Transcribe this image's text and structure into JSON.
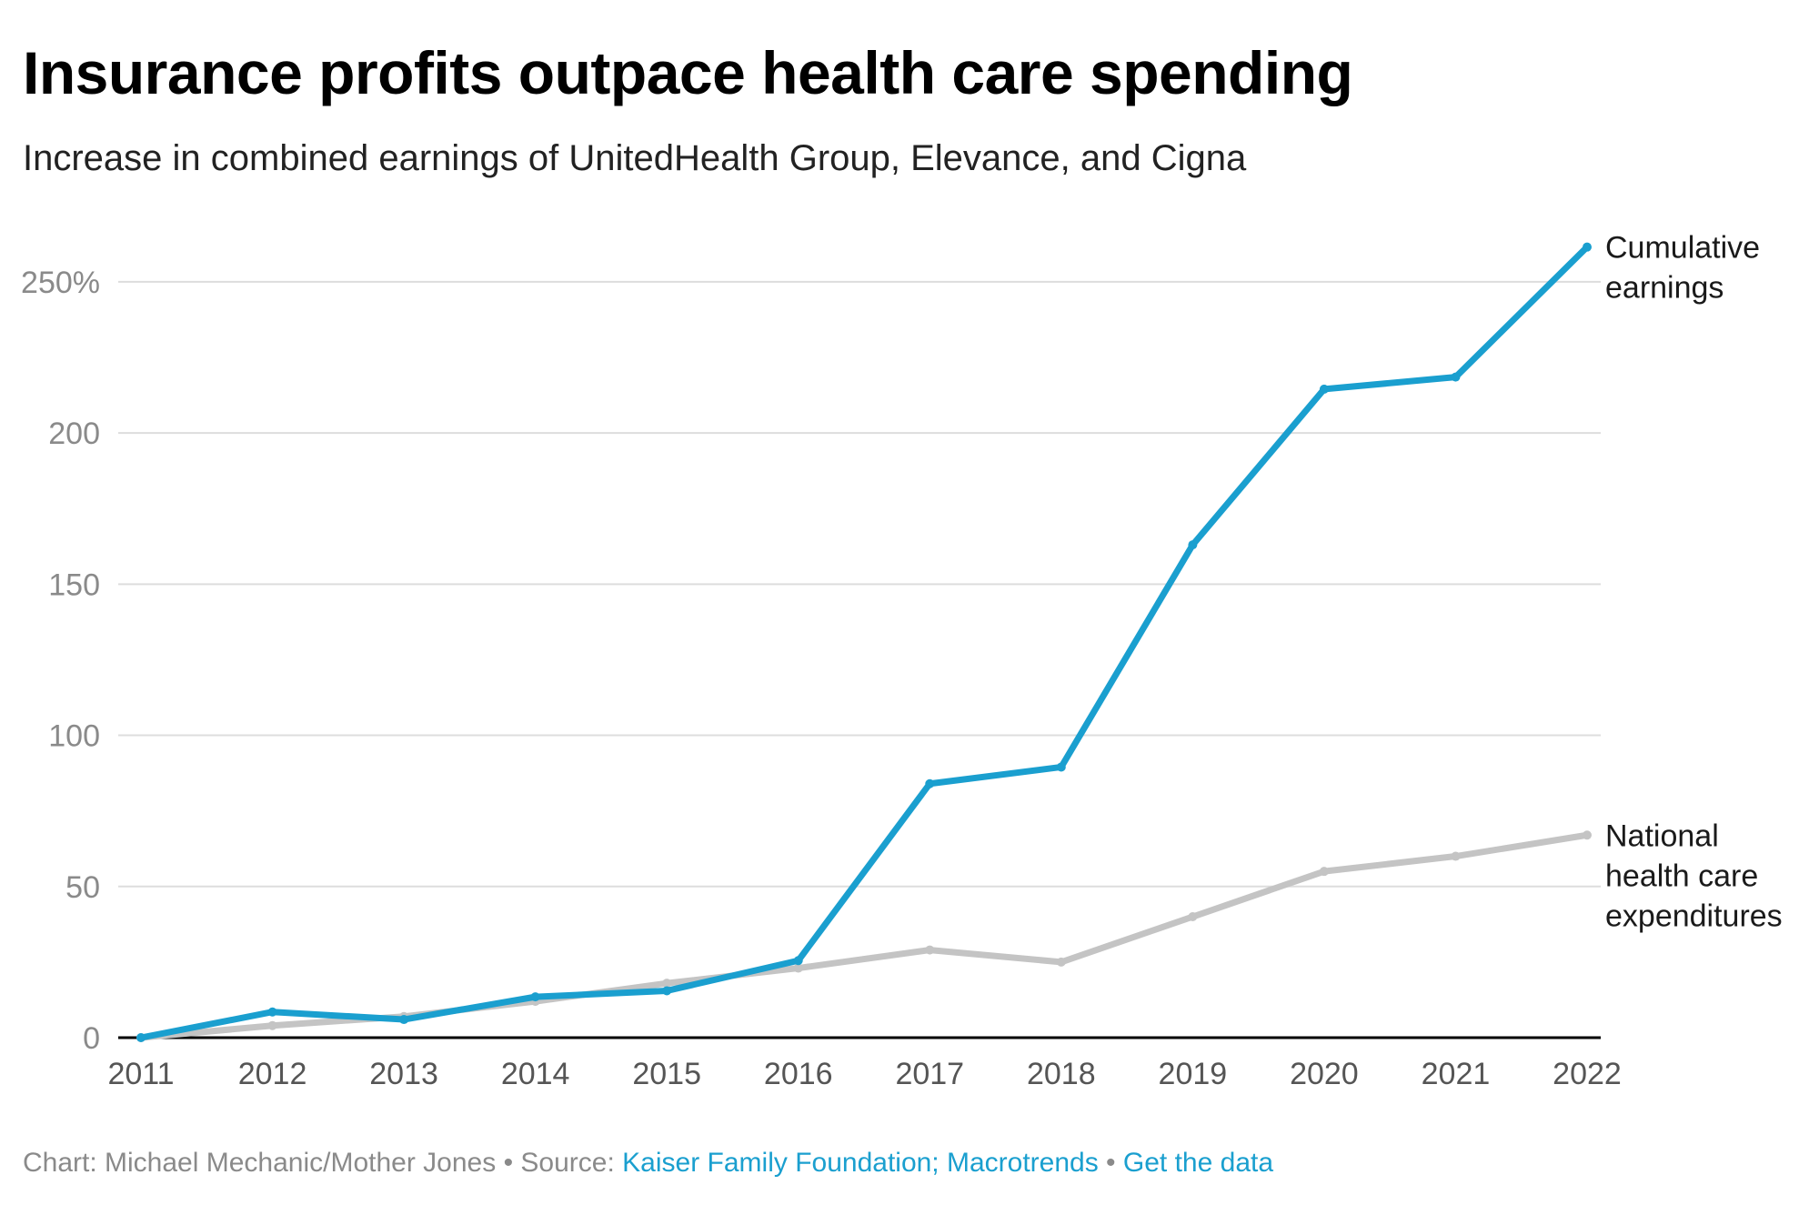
{
  "chart_data": {
    "type": "line",
    "title": "Insurance profits outpace health care spending",
    "subtitle": "Increase in combined earnings of UnitedHealth Group, Elevance, and Cigna",
    "x": [
      "2011",
      "2012",
      "2013",
      "2014",
      "2015",
      "2016",
      "2017",
      "2018",
      "2019",
      "2020",
      "2021",
      "2022"
    ],
    "ylim": [
      0,
      262
    ],
    "yticks": [
      {
        "value": 250,
        "label": "250%"
      },
      {
        "value": 200,
        "label": "200"
      },
      {
        "value": 150,
        "label": "150"
      },
      {
        "value": 100,
        "label": "100"
      },
      {
        "value": 50,
        "label": "50"
      },
      {
        "value": 0,
        "label": "0"
      }
    ],
    "grid": true,
    "series": [
      {
        "name": "National health care expenditures",
        "label_lines": [
          "National",
          "health care",
          "expenditures"
        ],
        "color": "#c4c4c4",
        "values": [
          0,
          4,
          7,
          12,
          18,
          23,
          29,
          25,
          40,
          55,
          60,
          67
        ]
      },
      {
        "name": "Cumulative earnings",
        "label_lines": [
          "Cumulative",
          "earnings"
        ],
        "color": "#1a9fcf",
        "values": [
          0,
          8.5,
          6,
          13.5,
          15.5,
          25.5,
          84,
          89.5,
          163,
          214.5,
          218.5,
          261.5
        ]
      }
    ]
  },
  "footer": {
    "credit": "Chart: Michael Mechanic/Mother Jones",
    "separator": " • ",
    "source_prefix": "Source: ",
    "source_link": "Kaiser Family Foundation; Macrotrends",
    "data_link": "Get the data"
  },
  "colors": {
    "accent": "#1a9fcf",
    "secondary": "#c4c4c4",
    "grid": "#dddddd",
    "baseline": "#000000"
  }
}
